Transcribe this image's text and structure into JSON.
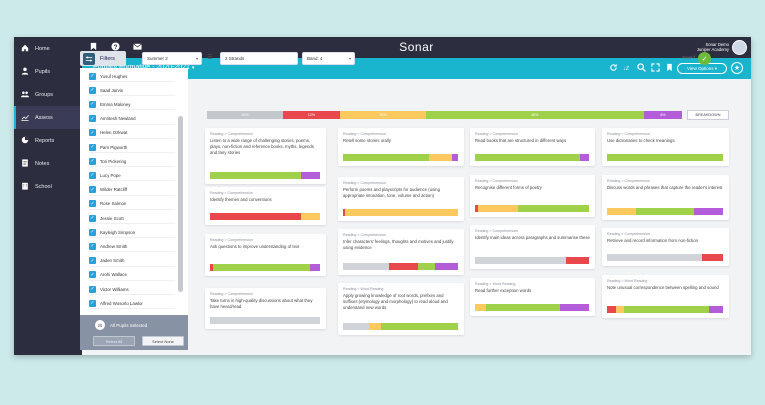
{
  "app": {
    "brand": "Sonar",
    "user_name": "Sonar Demo",
    "user_school": "Juniper Academy"
  },
  "nav": [
    {
      "label": "Home",
      "icon": "home-icon"
    },
    {
      "label": "Pupils",
      "icon": "user-icon"
    },
    {
      "label": "Groups",
      "icon": "groups-icon"
    },
    {
      "label": "Assess",
      "icon": "chart-icon",
      "active": true
    },
    {
      "label": "Reports",
      "icon": "pie-icon"
    },
    {
      "label": "Notes",
      "icon": "notes-icon"
    },
    {
      "label": "School",
      "icon": "building-icon"
    }
  ],
  "header": {
    "title": "Primary Formative - 2020-2021",
    "view_options": "View Options"
  },
  "filters": {
    "button": "Filters",
    "term": "Summer 2",
    "strands": "2 Strands",
    "band": "Band: 4",
    "saved": "Saved"
  },
  "pupils": [
    "Yusuf Hughes",
    "Saad Jarvis",
    "Emma Maloney",
    "Amritesh Newland",
    "Helen Ozkwat",
    "Pam Pigworth",
    "Tori Pickering",
    "Lucy Pope",
    "Wilder Ratcliff",
    "Rose Salmon",
    "Jessie Scott",
    "Kayleigh Simpson",
    "Andrew Smith",
    "Jaden Smith",
    "Arohi Wallace",
    "Victor Williams",
    "Alfred Wosorlo Lawlor"
  ],
  "selection": {
    "count": "25",
    "label": "All Pupils Selected",
    "select_all": "Select All",
    "select_none": "Select None"
  },
  "overall": {
    "breakdown_label": "BREAKDOWN",
    "segments": [
      {
        "label": "16%",
        "value": 16,
        "color": "#c4c7cc"
      },
      {
        "label": "12%",
        "value": 12,
        "color": "#e8484c"
      },
      {
        "label": "18%",
        "value": 18,
        "color": "#fbc95e"
      },
      {
        "label": "46%",
        "value": 46,
        "color": "#9fd14a"
      },
      {
        "label": "8%",
        "value": 8,
        "color": "#b35ed8"
      }
    ]
  },
  "colors": {
    "grey": "#d0d3d8",
    "red": "#e8484c",
    "amber": "#fbc95e",
    "green": "#9fd14a",
    "purple": "#b35ed8",
    "accent": "#19b5cf",
    "sidebar": "#2c2d3f"
  },
  "columns": [
    [
      {
        "category": "Reading > Comprehension",
        "title": "Listen to a wide range of challenging stories, poems, plays, non-fiction and reference books, myths, legends and fairy stories",
        "bar": [
          [
            "green",
            83
          ],
          [
            "purple",
            17
          ]
        ]
      },
      {
        "category": "Reading > Comprehension",
        "title": "Identify themes and conventions",
        "bar": [
          [
            "red",
            83
          ],
          [
            "amber",
            17
          ]
        ]
      },
      {
        "category": "Reading > Comprehension",
        "title": "Ask questions to improve understanding of text",
        "bar": [
          [
            "red",
            3
          ],
          [
            "green",
            88
          ],
          [
            "purple",
            9
          ]
        ]
      },
      {
        "category": "Reading > Comprehension",
        "title": "Take turns in high-quality discussions about what they have heard/read",
        "bar": [
          [
            "grey",
            100
          ]
        ]
      }
    ],
    [
      {
        "category": "Reading > Comprehension",
        "title": "Retell some stories orally",
        "bar": [
          [
            "green",
            75
          ],
          [
            "amber",
            20
          ],
          [
            "purple",
            5
          ]
        ]
      },
      {
        "category": "Reading > Comprehension",
        "title": "Perform poems and playscripts for audience (using appropriate intonation, tone, volume and action)",
        "bar": [
          [
            "red",
            2
          ],
          [
            "amber",
            98
          ]
        ]
      },
      {
        "category": "Reading > Comprehension",
        "title": "Infer characters' feelings, thoughts and motives and justify using evidence",
        "bar": [
          [
            "grey",
            40
          ],
          [
            "red",
            25
          ],
          [
            "green",
            15
          ],
          [
            "purple",
            20
          ]
        ]
      },
      {
        "category": "Reading > Word Reading",
        "title": "Apply growing knowledge of root words, prefixes and suffixes (etymology and morphology) to read aloud and understand new words",
        "bar": [
          [
            "grey",
            23
          ],
          [
            "amber",
            10
          ],
          [
            "green",
            67
          ]
        ]
      }
    ],
    [
      {
        "category": "Reading > Comprehension",
        "title": "Read books that are structured in different ways",
        "bar": [
          [
            "green",
            92
          ],
          [
            "purple",
            8
          ]
        ]
      },
      {
        "category": "Reading > Comprehension",
        "title": "Recognise different forms of poetry",
        "bar": [
          [
            "red",
            3
          ],
          [
            "amber",
            35
          ],
          [
            "green",
            62
          ]
        ]
      },
      {
        "category": "Reading > Comprehension",
        "title": "Identify main ideas across paragraphs and summarise these",
        "bar": [
          [
            "grey",
            80
          ],
          [
            "red",
            20
          ]
        ]
      },
      {
        "category": "Reading > Word Reading",
        "title": "Read further exception words",
        "bar": [
          [
            "amber",
            10
          ],
          [
            "green",
            65
          ],
          [
            "purple",
            25
          ]
        ]
      }
    ],
    [
      {
        "category": "Reading > Comprehension",
        "title": "Use dictionaries to check meanings",
        "bar": [
          [
            "green",
            100
          ]
        ]
      },
      {
        "category": "Reading > Comprehension",
        "title": "Discuss words and phrases that capture the reader's interest",
        "bar": [
          [
            "amber",
            25
          ],
          [
            "green",
            50
          ],
          [
            "purple",
            25
          ]
        ]
      },
      {
        "category": "Reading > Comprehension",
        "title": "Retrieve and record information from non-fiction",
        "bar": [
          [
            "grey",
            82
          ],
          [
            "red",
            18
          ]
        ]
      },
      {
        "category": "Reading > Word Reading",
        "title": "Note unusual correspondence between spelling and sound",
        "bar": [
          [
            "red",
            8
          ],
          [
            "amber",
            7
          ],
          [
            "green",
            73
          ],
          [
            "purple",
            12
          ]
        ]
      }
    ]
  ]
}
